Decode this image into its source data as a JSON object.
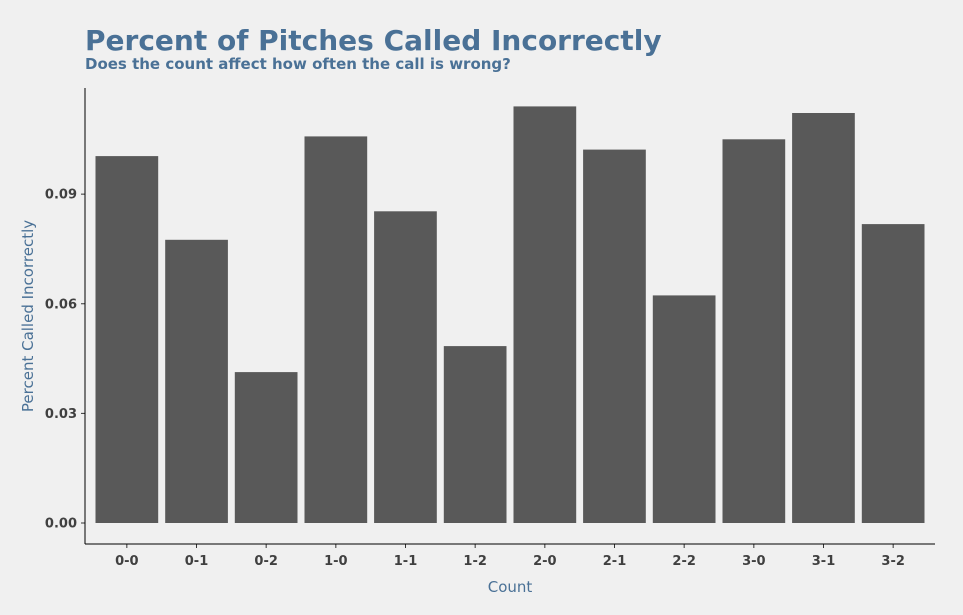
{
  "chart_data": {
    "type": "bar",
    "title": "Percent of Pitches Called Incorrectly",
    "subtitle": "Does the count affect how often the call is wrong?",
    "xlabel": "Count",
    "ylabel": "Percent Called Incorrectly",
    "categories": [
      "0-0",
      "0-1",
      "0-2",
      "1-0",
      "1-1",
      "1-2",
      "2-0",
      "2-1",
      "2-2",
      "3-0",
      "3-1",
      "3-2"
    ],
    "values": [
      0.1004,
      0.0775,
      0.0413,
      0.1058,
      0.0853,
      0.0484,
      0.114,
      0.1022,
      0.0623,
      0.105,
      0.1122,
      0.0818
    ],
    "yticks": [
      "0.00",
      "0.03",
      "0.06",
      "0.09"
    ],
    "ytick_values": [
      0,
      0.03,
      0.06,
      0.09
    ],
    "ylim": [
      0,
      0.1185
    ],
    "grid": false,
    "bar_color": "#595959",
    "text_color": "#4a7196",
    "background": "#f0f0f0"
  }
}
